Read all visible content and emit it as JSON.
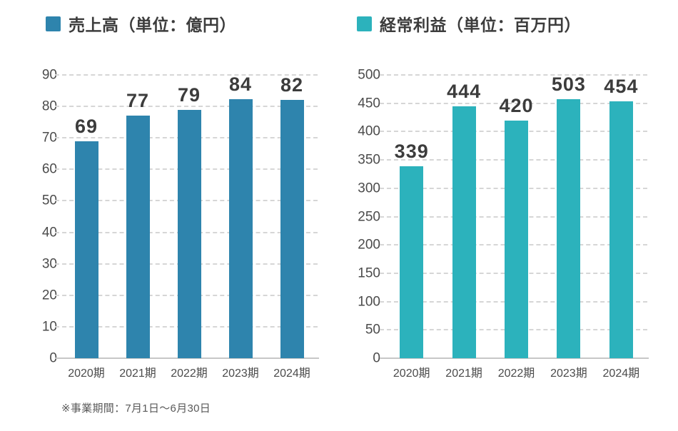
{
  "page": {
    "background": "#ffffff",
    "footnote": "※事業期間：7月1日～6月30日"
  },
  "colors": {
    "sales_bar": "#2e84ad",
    "profit_bar": "#2cb2bc",
    "value_label": "#3c3c3c",
    "tick_label": "#4b4b4b",
    "gridline": "#d6d6d6",
    "axis_line": "#c7c7c7"
  },
  "chart_data": [
    {
      "type": "bar",
      "title": "売上高（単位：億円）",
      "legend_color": "#2e84ad",
      "bar_color": "#2e84ad",
      "categories": [
        "2020期",
        "2021期",
        "2022期",
        "2023期",
        "2024期"
      ],
      "values": [
        69,
        77,
        79,
        84,
        82
      ],
      "yticks": [
        0,
        10,
        20,
        30,
        40,
        50,
        60,
        70,
        80,
        90
      ],
      "ylim": [
        0,
        90
      ],
      "grid": "horizontal-dashed",
      "legend_position": "top-left"
    },
    {
      "type": "bar",
      "title": "経常利益（単位：百万円）",
      "legend_color": "#2cb2bc",
      "bar_color": "#2cb2bc",
      "categories": [
        "2020期",
        "2021期",
        "2022期",
        "2023期",
        "2024期"
      ],
      "values": [
        339,
        444,
        420,
        503,
        454
      ],
      "yticks": [
        0,
        50,
        100,
        150,
        200,
        250,
        300,
        350,
        400,
        450,
        500
      ],
      "ylim": [
        0,
        500
      ],
      "grid": "horizontal-dashed",
      "legend_position": "top-left"
    }
  ]
}
